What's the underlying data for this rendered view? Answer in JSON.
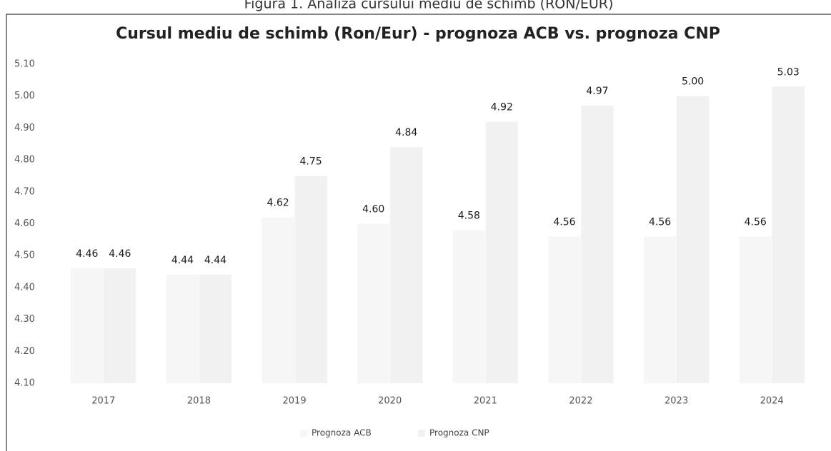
{
  "caption": "Figura 1. Analiza cursului mediu de schimb (RON/EUR)",
  "chart_data": {
    "type": "bar",
    "title": "Cursul mediu de schimb (Ron/Eur) - prognoza ACB vs. prognoza CNP",
    "categories": [
      "2017",
      "2018",
      "2019",
      "2020",
      "2021",
      "2022",
      "2023",
      "2024"
    ],
    "series": [
      {
        "name": "Prognoza ACB",
        "color": "#f6f6f6",
        "values": [
          4.46,
          4.44,
          4.62,
          4.6,
          4.58,
          4.56,
          4.56,
          4.56
        ],
        "value_labels": [
          "4.46",
          "4.44",
          "4.62",
          "4.60",
          "4.58",
          "4.56",
          "4.56",
          "4.56"
        ]
      },
      {
        "name": "Prognoza CNP",
        "color": "#f1f1f1",
        "values": [
          4.46,
          4.44,
          4.75,
          4.84,
          4.92,
          4.97,
          5,
          5.03
        ],
        "value_labels": [
          "4.46",
          "4.44",
          "4.75",
          "4.84",
          "4.92",
          "4.97",
          "5.00",
          "5.03"
        ]
      }
    ],
    "ylim": [
      4.1,
      5.1
    ],
    "yticks": [
      {
        "value": 4.1,
        "label": "4.10"
      },
      {
        "value": 4.2,
        "label": "4.20"
      },
      {
        "value": 4.3,
        "label": "4.30"
      },
      {
        "value": 4.4,
        "label": "4.40"
      },
      {
        "value": 4.5,
        "label": "4.50"
      },
      {
        "value": 4.6,
        "label": "4.60"
      },
      {
        "value": 4.7,
        "label": "4.70"
      },
      {
        "value": 4.8,
        "label": "4.80"
      },
      {
        "value": 4.9,
        "label": "4.90"
      },
      {
        "value": 5,
        "label": "5.00"
      },
      {
        "value": 5.1,
        "label": "5.10"
      }
    ],
    "grid": false,
    "legend": "bottom"
  }
}
